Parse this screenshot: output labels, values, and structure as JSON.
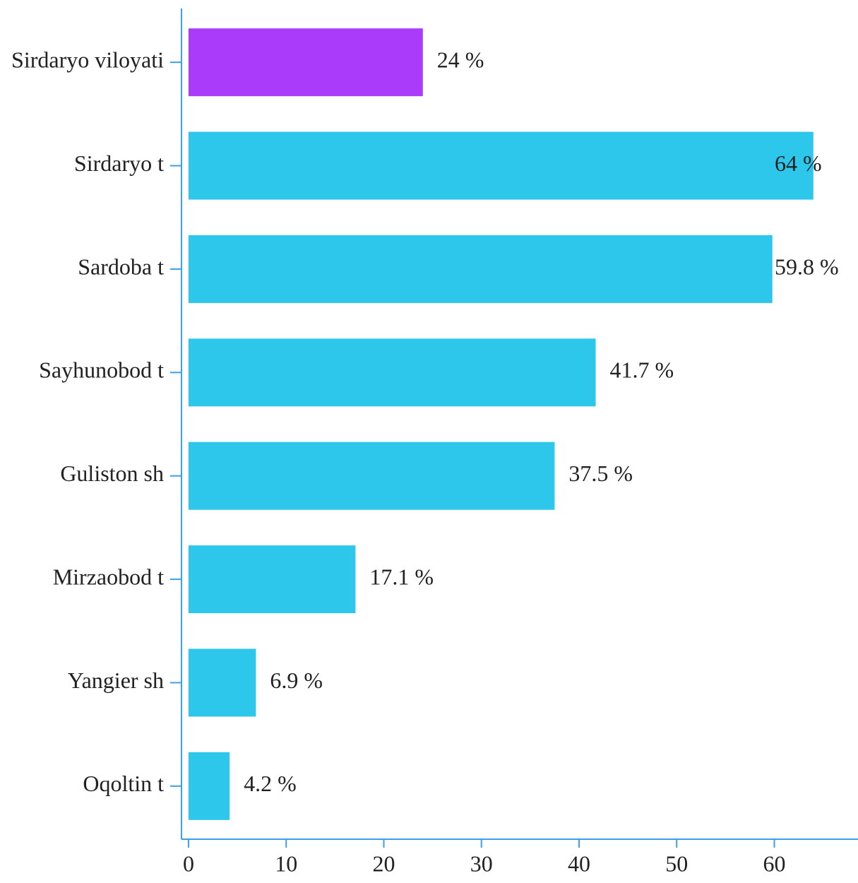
{
  "chart_data": {
    "type": "hbar",
    "categories": [
      "Sirdaryo viloyati",
      "Sirdaryo t",
      "Sardoba t",
      "Sayhunobod t",
      "Guliston sh",
      "Mirzaobod t",
      "Yangier sh",
      "Oqoltin t"
    ],
    "values": [
      24,
      64,
      59.8,
      41.7,
      37.5,
      17.1,
      6.9,
      4.2
    ],
    "value_labels": [
      "24 %",
      "64 %",
      "59.8 %",
      "41.7 %",
      "37.5 %",
      "17.1 %",
      "6.9 %",
      "4.2 %"
    ],
    "colors": [
      "#aa3bfa",
      "#2ec7ec",
      "#2ec7ec",
      "#2ec7ec",
      "#2ec7ec",
      "#2ec7ec",
      "#2ec7ec",
      "#2ec7ec"
    ],
    "xlim": [
      0,
      68.5
    ],
    "xticks": [
      0,
      10,
      20,
      30,
      40,
      50,
      60
    ]
  }
}
